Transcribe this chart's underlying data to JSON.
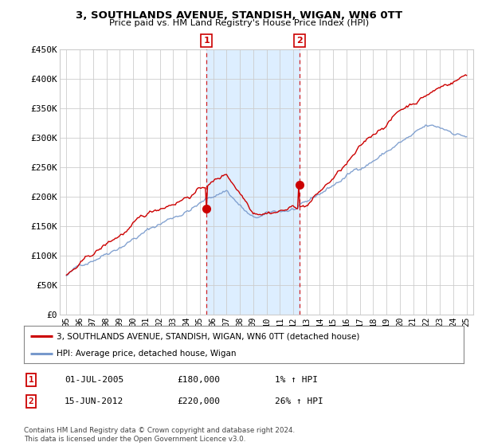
{
  "title": "3, SOUTHLANDS AVENUE, STANDISH, WIGAN, WN6 0TT",
  "subtitle": "Price paid vs. HM Land Registry's House Price Index (HPI)",
  "legend_line1": "3, SOUTHLANDS AVENUE, STANDISH, WIGAN, WN6 0TT (detached house)",
  "legend_line2": "HPI: Average price, detached house, Wigan",
  "footnote": "Contains HM Land Registry data © Crown copyright and database right 2024.\nThis data is licensed under the Open Government Licence v3.0.",
  "transaction1_label": "1",
  "transaction1_date": "01-JUL-2005",
  "transaction1_price": "£180,000",
  "transaction1_hpi": "1% ↑ HPI",
  "transaction2_label": "2",
  "transaction2_date": "15-JUN-2012",
  "transaction2_price": "£220,000",
  "transaction2_hpi": "26% ↑ HPI",
  "price_color": "#cc0000",
  "hpi_color": "#7799cc",
  "shade_color": "#ddeeff",
  "marker1_x": 2005.5,
  "marker1_y": 180000,
  "marker2_x": 2012.45,
  "marker2_y": 220000,
  "vline1_x": 2005.5,
  "vline2_x": 2012.45,
  "ylim_min": 0,
  "ylim_max": 450000,
  "xlim_min": 1994.5,
  "xlim_max": 2025.5,
  "yticks": [
    0,
    50000,
    100000,
    150000,
    200000,
    250000,
    300000,
    350000,
    400000,
    450000
  ],
  "ytick_labels": [
    "£0",
    "£50K",
    "£100K",
    "£150K",
    "£200K",
    "£250K",
    "£300K",
    "£350K",
    "£400K",
    "£450K"
  ],
  "xtick_labels": [
    "95",
    "96",
    "97",
    "98",
    "99",
    "00",
    "01",
    "02",
    "03",
    "04",
    "05",
    "06",
    "07",
    "08",
    "09",
    "10",
    "11",
    "12",
    "13",
    "14",
    "15",
    "16",
    "17",
    "18",
    "19",
    "20",
    "21",
    "22",
    "23",
    "24",
    "25"
  ],
  "xticks": [
    1995,
    1996,
    1997,
    1998,
    1999,
    2000,
    2001,
    2002,
    2003,
    2004,
    2005,
    2006,
    2007,
    2008,
    2009,
    2010,
    2011,
    2012,
    2013,
    2014,
    2015,
    2016,
    2017,
    2018,
    2019,
    2020,
    2021,
    2022,
    2023,
    2024,
    2025
  ],
  "background_color": "#ffffff",
  "plot_bg_color": "#ffffff",
  "grid_color": "#cccccc"
}
